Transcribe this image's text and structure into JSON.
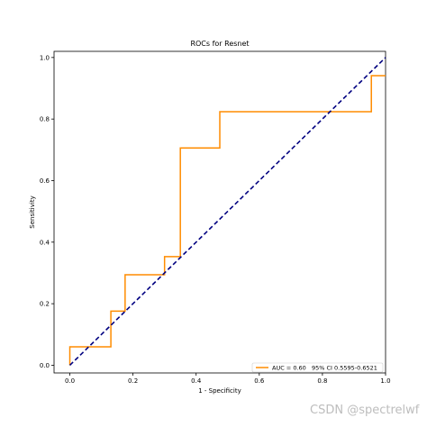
{
  "chart_data": {
    "type": "line",
    "title": "ROCs for Resnet",
    "xlabel": "1 - Specificity",
    "ylabel": "Sensitivity",
    "xlim": [
      -0.05,
      1.0
    ],
    "ylim": [
      -0.025,
      1.02
    ],
    "xticks": [
      "0.0",
      "0.2",
      "0.4",
      "0.6",
      "0.8",
      "1.0"
    ],
    "yticks": [
      "0.0",
      "0.2",
      "0.4",
      "0.6",
      "0.8",
      "1.0"
    ],
    "grid": false,
    "legend_position": "bottom-right",
    "series": [
      {
        "name": "AUC = 0.60   95% CI 0.5595-0.6521",
        "color": "#ff8c00",
        "style": "solid",
        "x": [
          0.0,
          0.0,
          0.13,
          0.13,
          0.175,
          0.175,
          0.3,
          0.3,
          0.35,
          0.35,
          0.475,
          0.475,
          0.955,
          0.955,
          1.0
        ],
        "y": [
          0.0,
          0.06,
          0.06,
          0.176,
          0.176,
          0.294,
          0.294,
          0.353,
          0.353,
          0.706,
          0.706,
          0.824,
          0.824,
          0.941,
          0.941
        ]
      },
      {
        "name": "",
        "color": "#000080",
        "style": "dashed",
        "x": [
          0.0,
          1.0
        ],
        "y": [
          0.0,
          1.0
        ]
      }
    ]
  },
  "watermark": "CSDN @spectrelwf"
}
